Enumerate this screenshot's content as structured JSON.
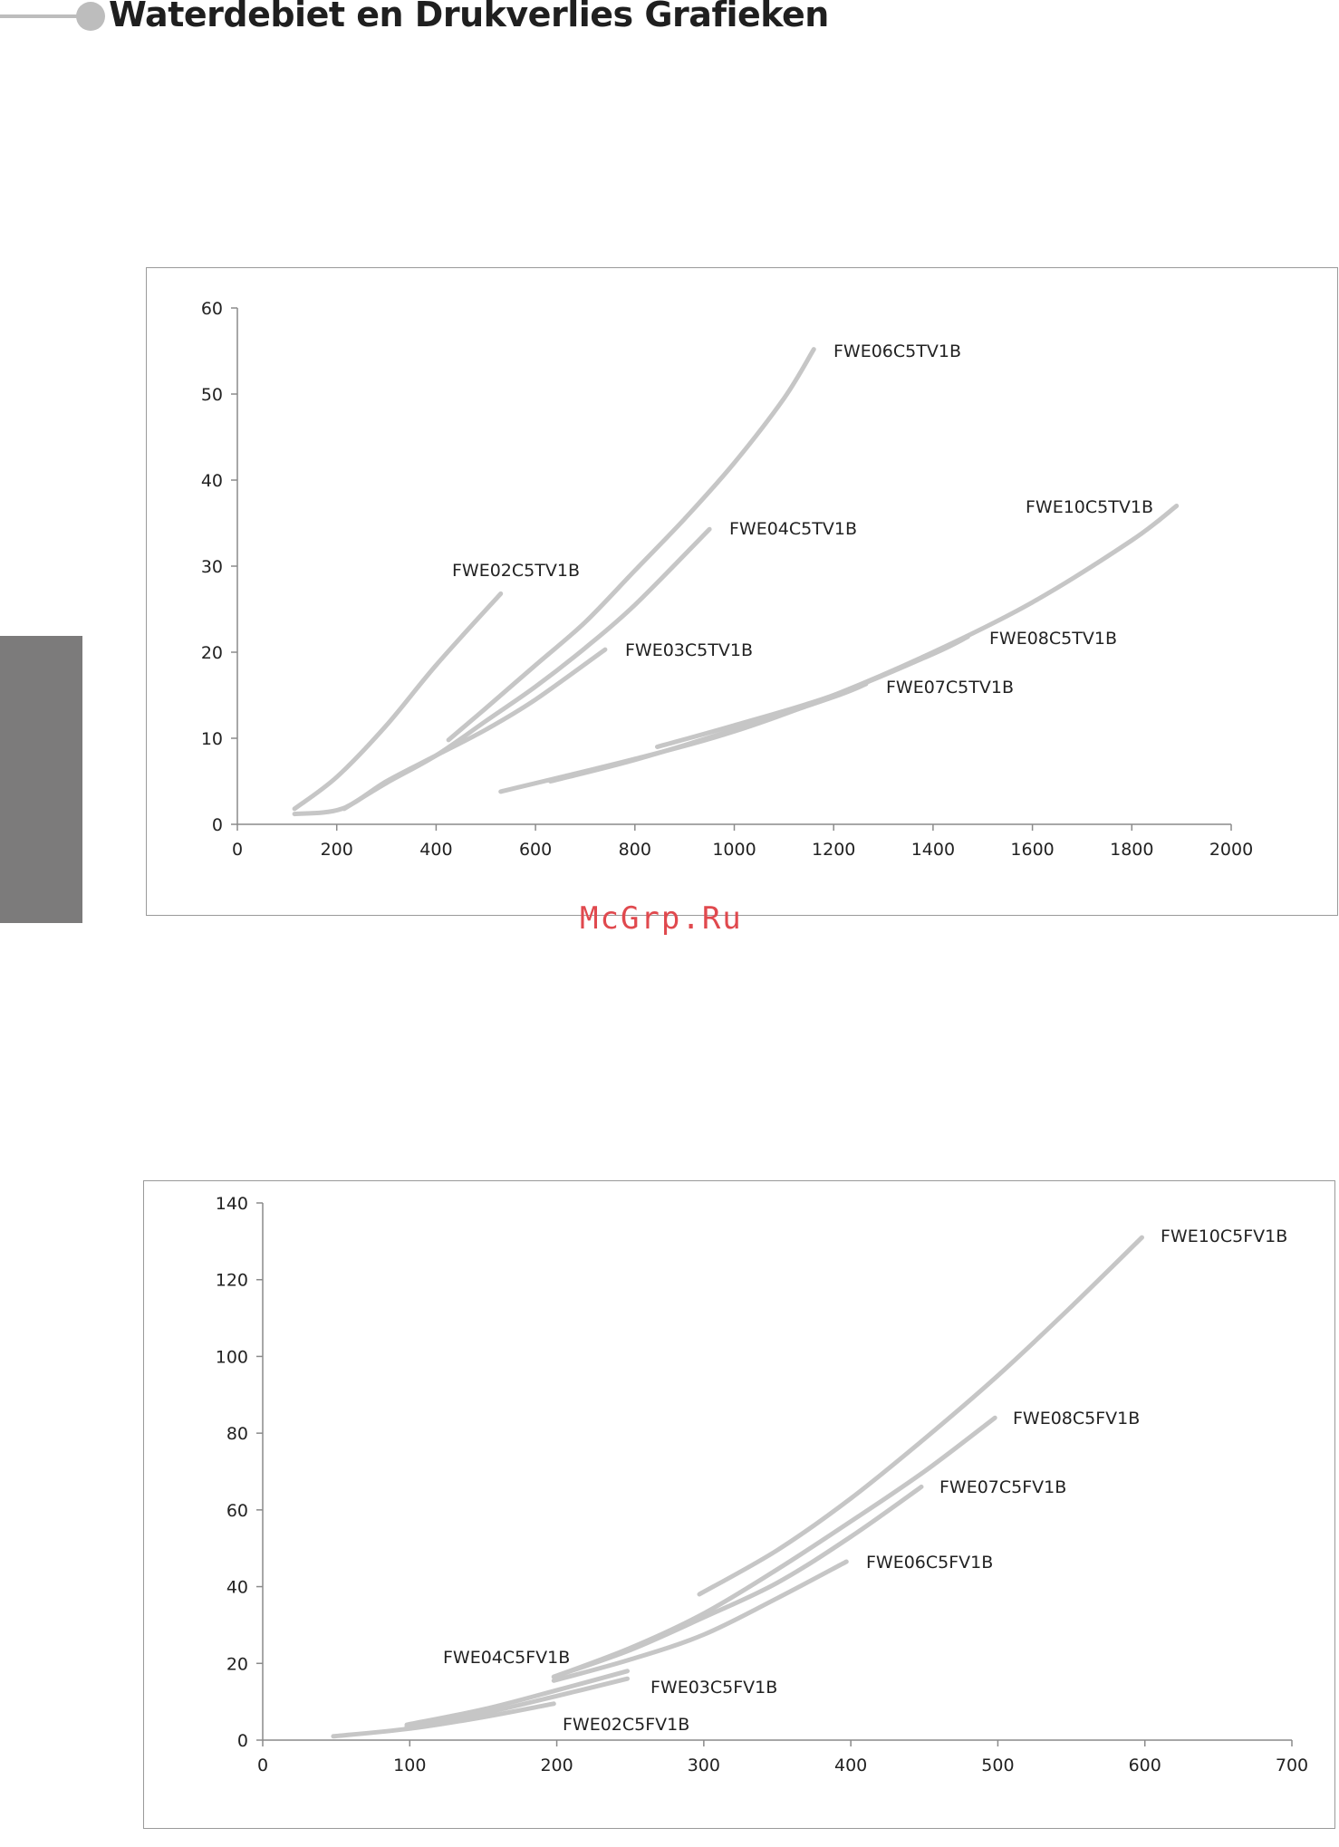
{
  "header": {
    "title": "Waterdebiet en Drukverlies Grafieken"
  },
  "watermark": "McGrp.Ru",
  "colors": {
    "series_line": "#c6c6c6",
    "side_tab": "#7c7b7b",
    "watermark": "#e0494e"
  },
  "chart_data": [
    {
      "type": "line",
      "title": "",
      "xlabel": "",
      "ylabel": "",
      "xlim": [
        0,
        2000
      ],
      "ylim": [
        0,
        60
      ],
      "x_ticks": [
        0,
        200,
        400,
        600,
        800,
        1000,
        1200,
        1400,
        1600,
        1800,
        2000
      ],
      "y_ticks": [
        0,
        10,
        20,
        30,
        40,
        50,
        60
      ],
      "grid": false,
      "legend": "none",
      "series": [
        {
          "name": "FWE02C5TV1B",
          "x": [
            115,
            200,
            300,
            400,
            530
          ],
          "y": [
            1.8,
            5.5,
            11.5,
            18.5,
            26.8
          ]
        },
        {
          "name": "FWE03C5TV1B",
          "x": [
            115,
            210,
            300,
            400,
            500,
            600,
            740
          ],
          "y": [
            1.2,
            1.8,
            5.0,
            8.0,
            11.0,
            14.5,
            20.3
          ]
        },
        {
          "name": "FWE04C5TV1B",
          "x": [
            215,
            300,
            400,
            500,
            600,
            700,
            800,
            950
          ],
          "y": [
            1.8,
            4.8,
            8.0,
            12.0,
            16.0,
            20.5,
            25.5,
            34.3
          ]
        },
        {
          "name": "FWE06C5TV1B",
          "x": [
            425,
            500,
            600,
            700,
            800,
            900,
            1000,
            1100,
            1160
          ],
          "y": [
            9.8,
            13.5,
            18.5,
            23.5,
            29.5,
            35.5,
            42.0,
            49.5,
            55.2
          ]
        },
        {
          "name": "FWE07C5TV1B",
          "x": [
            630,
            800,
            1000,
            1200,
            1265
          ],
          "y": [
            5.0,
            7.5,
            11.0,
            14.8,
            16.3
          ]
        },
        {
          "name": "FWE08C5TV1B",
          "x": [
            845,
            1000,
            1200,
            1400,
            1470
          ],
          "y": [
            9.0,
            11.5,
            15.0,
            19.8,
            21.8
          ]
        },
        {
          "name": "FWE10C5TV1B",
          "x": [
            530,
            800,
            1000,
            1200,
            1400,
            1600,
            1800,
            1890
          ],
          "y": [
            3.8,
            7.6,
            10.8,
            15.0,
            20.0,
            25.8,
            33.0,
            37.0
          ]
        }
      ]
    },
    {
      "type": "line",
      "title": "",
      "xlabel": "",
      "ylabel": "",
      "xlim": [
        0,
        700
      ],
      "ylim": [
        0,
        140
      ],
      "x_ticks": [
        0,
        100,
        200,
        300,
        400,
        500,
        600,
        700
      ],
      "y_ticks": [
        0,
        20,
        40,
        60,
        80,
        100,
        120,
        140
      ],
      "grid": false,
      "legend": "none",
      "series": [
        {
          "name": "FWE02C5FV1B",
          "x": [
            48,
            100,
            150,
            198
          ],
          "y": [
            1.0,
            3.0,
            6.0,
            9.5
          ]
        },
        {
          "name": "FWE03C5FV1B",
          "x": [
            98,
            150,
            200,
            248
          ],
          "y": [
            3.5,
            7.0,
            11.5,
            16.0
          ]
        },
        {
          "name": "FWE04C5FV1B",
          "x": [
            98,
            150,
            200,
            248
          ],
          "y": [
            4.0,
            8.0,
            13.0,
            18.0
          ]
        },
        {
          "name": "FWE06C5FV1B",
          "x": [
            198,
            250,
            300,
            350,
            397
          ],
          "y": [
            15.5,
            21.0,
            27.5,
            37.0,
            46.5
          ]
        },
        {
          "name": "FWE07C5FV1B",
          "x": [
            198,
            250,
            300,
            350,
            400,
            448
          ],
          "y": [
            16.5,
            23.5,
            32.0,
            41.0,
            53.0,
            66.0
          ]
        },
        {
          "name": "FWE08C5FV1B",
          "x": [
            198,
            250,
            300,
            350,
            400,
            450,
            498
          ],
          "y": [
            16.5,
            24.0,
            33.0,
            44.5,
            57.0,
            70.0,
            84.0
          ]
        },
        {
          "name": "FWE10C5FV1B",
          "x": [
            297,
            350,
            400,
            450,
            500,
            550,
            598
          ],
          "y": [
            38.0,
            49.5,
            63.0,
            78.5,
            95.0,
            113.0,
            131.0
          ]
        }
      ]
    }
  ]
}
